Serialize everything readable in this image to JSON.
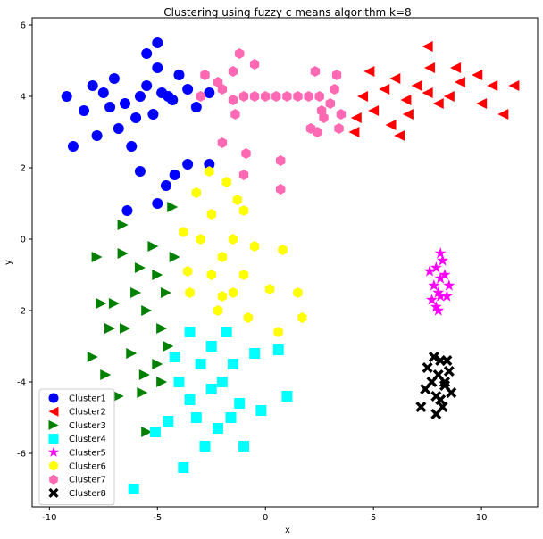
{
  "chart_data": {
    "type": "scatter",
    "title": "Clustering using fuzzy c means algorithm k=8",
    "xlabel": "x",
    "ylabel": "y",
    "xlim": [
      -10.8,
      12.6
    ],
    "ylim": [
      -7.5,
      6.2
    ],
    "xticks": [
      -10,
      -5,
      0,
      5,
      10
    ],
    "yticks": [
      -6,
      -4,
      -2,
      0,
      2,
      4,
      6
    ],
    "grid": false,
    "legend_position": "lower-left",
    "series": [
      {
        "name": "Cluster1",
        "color": "#0000ff",
        "marker": "circle",
        "points": [
          [
            -7.5,
            4.1
          ],
          [
            -6.5,
            3.8
          ],
          [
            -5.5,
            4.3
          ],
          [
            -4.5,
            4.0
          ],
          [
            -3.6,
            4.2
          ],
          [
            -8.4,
            3.6
          ],
          [
            -7.0,
            4.5
          ],
          [
            -6.0,
            3.4
          ],
          [
            -5.0,
            4.8
          ],
          [
            -3.2,
            3.7
          ],
          [
            -9.2,
            4.0
          ],
          [
            -8.0,
            4.3
          ],
          [
            -4.0,
            4.6
          ],
          [
            -6.8,
            3.1
          ],
          [
            -5.2,
            3.5
          ],
          [
            -4.8,
            4.1
          ],
          [
            -7.2,
            3.7
          ],
          [
            -5.8,
            4.0
          ],
          [
            -4.3,
            3.9
          ],
          [
            -2.6,
            4.1
          ],
          [
            -5.0,
            5.5
          ],
          [
            -5.5,
            5.2
          ],
          [
            -7.8,
            2.9
          ],
          [
            -8.9,
            2.6
          ],
          [
            -6.2,
            2.6
          ],
          [
            -5.8,
            1.9
          ],
          [
            -4.6,
            1.5
          ],
          [
            -5.0,
            1.0
          ],
          [
            -3.6,
            2.1
          ],
          [
            -2.6,
            2.1
          ],
          [
            -6.4,
            0.8
          ],
          [
            -4.2,
            1.8
          ]
        ]
      },
      {
        "name": "Cluster2",
        "color": "#ff0000",
        "marker": "triangle-left",
        "points": [
          [
            4.5,
            4.0
          ],
          [
            5.5,
            4.2
          ],
          [
            6.5,
            3.9
          ],
          [
            7.5,
            4.1
          ],
          [
            8.5,
            4.0
          ],
          [
            5.0,
            3.6
          ],
          [
            6.0,
            4.5
          ],
          [
            7.0,
            4.3
          ],
          [
            8.0,
            3.8
          ],
          [
            9.0,
            4.4
          ],
          [
            4.2,
            3.4
          ],
          [
            5.8,
            3.2
          ],
          [
            7.6,
            4.8
          ],
          [
            6.6,
            3.5
          ],
          [
            4.8,
            4.7
          ],
          [
            10.0,
            3.8
          ],
          [
            11.0,
            3.5
          ],
          [
            10.5,
            4.3
          ],
          [
            11.5,
            4.3
          ],
          [
            7.5,
            5.4
          ],
          [
            6.2,
            2.9
          ],
          [
            4.1,
            3.0
          ],
          [
            8.8,
            4.8
          ],
          [
            9.8,
            4.6
          ]
        ]
      },
      {
        "name": "Cluster3",
        "color": "#008000",
        "marker": "triangle-right",
        "points": [
          [
            -5.0,
            -1.0
          ],
          [
            -5.5,
            -2.0
          ],
          [
            -4.5,
            -3.0
          ],
          [
            -6.0,
            -1.5
          ],
          [
            -5.2,
            -0.2
          ],
          [
            -4.8,
            -2.5
          ],
          [
            -6.2,
            -3.2
          ],
          [
            -5.6,
            -3.8
          ],
          [
            -4.6,
            -1.5
          ],
          [
            -6.5,
            -2.5
          ],
          [
            -5.8,
            -0.8
          ],
          [
            -4.2,
            -0.5
          ],
          [
            -5.0,
            -3.5
          ],
          [
            -6.6,
            -0.4
          ],
          [
            -7.0,
            -1.8
          ],
          [
            -7.2,
            -2.5
          ],
          [
            -7.4,
            -3.8
          ],
          [
            -7.8,
            -0.5
          ],
          [
            -8.0,
            -3.3
          ],
          [
            -6.8,
            -4.4
          ],
          [
            -5.5,
            -5.4
          ],
          [
            -6.6,
            0.4
          ],
          [
            -4.3,
            0.9
          ],
          [
            -5.7,
            -4.3
          ],
          [
            -4.8,
            -4.0
          ],
          [
            -7.6,
            -1.8
          ]
        ]
      },
      {
        "name": "Cluster4",
        "color": "#00ffff",
        "marker": "square",
        "points": [
          [
            -3.0,
            -3.5
          ],
          [
            -2.0,
            -4.0
          ],
          [
            -3.5,
            -4.5
          ],
          [
            -2.5,
            -3.0
          ],
          [
            -1.5,
            -3.5
          ],
          [
            -4.0,
            -4.0
          ],
          [
            -3.2,
            -5.0
          ],
          [
            -2.2,
            -5.3
          ],
          [
            -1.2,
            -4.6
          ],
          [
            -4.5,
            -5.1
          ],
          [
            -0.5,
            -3.2
          ],
          [
            -1.8,
            -2.6
          ],
          [
            -4.2,
            -3.3
          ],
          [
            -2.8,
            -5.8
          ],
          [
            -3.8,
            -6.4
          ],
          [
            -6.1,
            -7.0
          ],
          [
            -5.1,
            -5.4
          ],
          [
            -1.0,
            -5.8
          ],
          [
            1.0,
            -4.4
          ],
          [
            0.6,
            -3.1
          ],
          [
            -0.2,
            -4.8
          ],
          [
            -2.5,
            -4.2
          ],
          [
            -3.5,
            -2.6
          ],
          [
            -1.6,
            -5.0
          ]
        ]
      },
      {
        "name": "Cluster5",
        "color": "#ff00ff",
        "marker": "star",
        "points": [
          [
            7.9,
            -0.8
          ],
          [
            8.1,
            -1.1
          ],
          [
            8.0,
            -1.5
          ],
          [
            7.8,
            -1.3
          ],
          [
            8.3,
            -1.0
          ],
          [
            8.1,
            -0.4
          ],
          [
            7.7,
            -1.7
          ],
          [
            8.4,
            -1.6
          ],
          [
            8.0,
            -2.0
          ],
          [
            7.6,
            -0.9
          ],
          [
            8.5,
            -1.3
          ],
          [
            8.2,
            -0.6
          ],
          [
            7.9,
            -1.9
          ],
          [
            8.1,
            -1.6
          ]
        ]
      },
      {
        "name": "Cluster6",
        "color": "#ffff00",
        "marker": "hexagon",
        "points": [
          [
            -2.5,
            -1.0
          ],
          [
            -3.0,
            0.0
          ],
          [
            -2.0,
            -0.5
          ],
          [
            -1.5,
            -1.5
          ],
          [
            -3.5,
            -1.5
          ],
          [
            -2.5,
            0.7
          ],
          [
            -1.0,
            -1.0
          ],
          [
            -3.8,
            0.2
          ],
          [
            -0.8,
            -2.2
          ],
          [
            -2.2,
            -2.0
          ],
          [
            -1.5,
            0.0
          ],
          [
            -3.2,
            1.3
          ],
          [
            -2.6,
            1.9
          ],
          [
            -1.8,
            1.6
          ],
          [
            0.8,
            -0.3
          ],
          [
            1.5,
            -1.5
          ],
          [
            1.7,
            -2.2
          ],
          [
            0.6,
            -2.6
          ],
          [
            -1.0,
            0.8
          ],
          [
            -0.5,
            -0.2
          ],
          [
            0.2,
            -1.4
          ],
          [
            -3.6,
            -0.9
          ],
          [
            -2.0,
            -1.6
          ],
          [
            -1.3,
            1.1
          ]
        ]
      },
      {
        "name": "Cluster7",
        "color": "#ff69b4",
        "marker": "hexagon",
        "points": [
          [
            -2.0,
            4.2
          ],
          [
            -1.0,
            4.0
          ],
          [
            0.0,
            4.0
          ],
          [
            1.0,
            4.0
          ],
          [
            2.0,
            4.0
          ],
          [
            -1.5,
            3.9
          ],
          [
            -0.5,
            4.0
          ],
          [
            0.5,
            4.0
          ],
          [
            1.5,
            4.0
          ],
          [
            2.5,
            4.0
          ],
          [
            3.0,
            3.8
          ],
          [
            3.5,
            3.5
          ],
          [
            3.2,
            4.2
          ],
          [
            -1.5,
            4.7
          ],
          [
            -1.2,
            5.2
          ],
          [
            -0.5,
            4.9
          ],
          [
            2.3,
            4.7
          ],
          [
            3.3,
            4.6
          ],
          [
            -2.2,
            4.4
          ],
          [
            2.1,
            3.1
          ],
          [
            3.4,
            3.1
          ],
          [
            2.6,
            3.6
          ],
          [
            -1.4,
            3.5
          ],
          [
            -2.0,
            2.7
          ],
          [
            -0.9,
            2.4
          ],
          [
            0.7,
            2.2
          ],
          [
            -1.0,
            1.8
          ],
          [
            0.7,
            1.4
          ],
          [
            2.4,
            3.0
          ],
          [
            2.7,
            3.4
          ],
          [
            -2.8,
            4.6
          ],
          [
            -3.0,
            4.0
          ]
        ]
      },
      {
        "name": "Cluster8",
        "color": "#000000",
        "marker": "x",
        "points": [
          [
            8.0,
            -3.8
          ],
          [
            8.3,
            -4.1
          ],
          [
            7.7,
            -4.0
          ],
          [
            8.1,
            -3.4
          ],
          [
            8.5,
            -3.7
          ],
          [
            7.9,
            -4.4
          ],
          [
            8.2,
            -4.7
          ],
          [
            7.5,
            -3.6
          ],
          [
            8.6,
            -4.3
          ],
          [
            7.8,
            -3.3
          ],
          [
            8.4,
            -3.4
          ],
          [
            7.4,
            -4.2
          ],
          [
            8.1,
            -4.5
          ],
          [
            7.2,
            -4.7
          ],
          [
            7.9,
            -4.9
          ],
          [
            8.3,
            -4.0
          ]
        ]
      }
    ]
  }
}
